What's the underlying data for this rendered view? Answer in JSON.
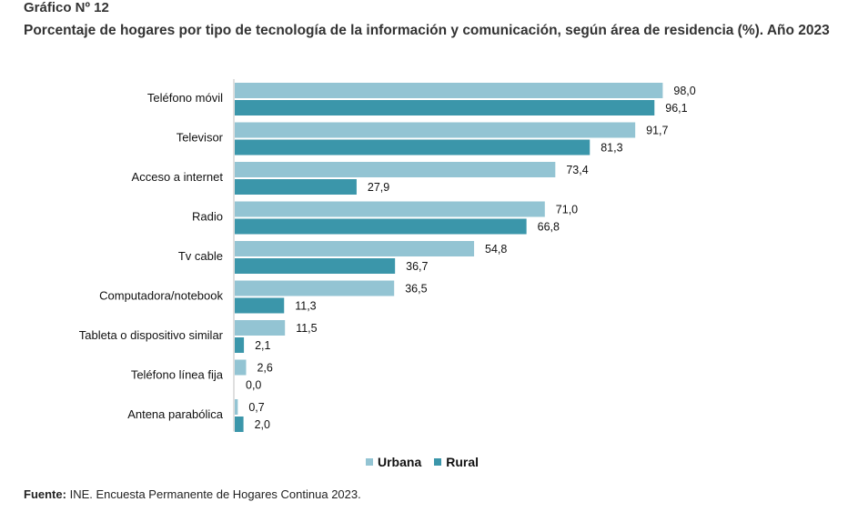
{
  "header": {
    "figure_number": "Gráfico Nº 12",
    "title": "Porcentaje de hogares por tipo de tecnología de la información y comunicación, según área de residencia (%). Año 2023"
  },
  "footer": {
    "source_label": "Fuente:",
    "source_text": "INE. Encuesta Permanente de Hogares Continua 2023."
  },
  "chart_data": {
    "type": "bar",
    "orientation": "horizontal",
    "title": "Porcentaje de hogares por tipo de tecnología de la información y comunicación, según área de residencia (%). Año 2023",
    "xlim": [
      0,
      100
    ],
    "grid": false,
    "legend_position": "bottom",
    "categories": [
      "Teléfono móvil",
      "Televisor",
      "Acceso a internet",
      "Radio",
      "Tv cable",
      "Computadora/notebook",
      "Tableta o dispositivo similar",
      "Teléfono línea fija",
      "Antena parabólica"
    ],
    "series": [
      {
        "name": "Urbana",
        "color": "#93c4d3",
        "values": [
          98.0,
          91.7,
          73.4,
          71.0,
          54.8,
          36.5,
          11.5,
          2.6,
          0.7
        ],
        "labels": [
          "98,0",
          "91,7",
          "73,4",
          "71,0",
          "54,8",
          "36,5",
          "11,5",
          "2,6",
          "0,7"
        ]
      },
      {
        "name": "Rural",
        "color": "#3b96aa",
        "values": [
          96.1,
          81.3,
          27.9,
          66.8,
          36.7,
          11.3,
          2.1,
          0.0,
          2.0
        ],
        "labels": [
          "96,1",
          "81,3",
          "27,9",
          "66,8",
          "36,7",
          "11,3",
          "2,1",
          "0,0",
          "2,0"
        ]
      }
    ]
  }
}
